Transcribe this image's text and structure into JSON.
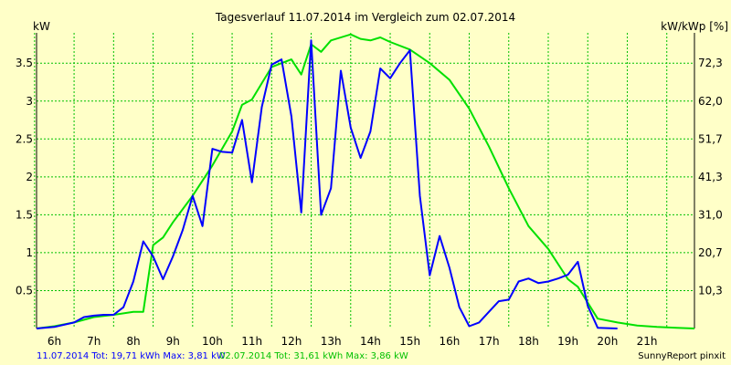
{
  "chart_data": {
    "type": "line",
    "title": "Tagesverlauf 11.07.2014 im Vergleich zum 02.07.2014",
    "ylabel_left": "kW",
    "ylabel_right": "kW/kWp [%]",
    "ylim": [
      0,
      3.9
    ],
    "xlim": [
      5.55,
      22.2
    ],
    "grid": true,
    "x_ticks": [
      "6h",
      "7h",
      "8h",
      "9h",
      "10h",
      "11h",
      "12h",
      "13h",
      "14h",
      "15h",
      "16h",
      "17h",
      "18h",
      "19h",
      "20h",
      "21h"
    ],
    "y_ticks_left": [
      "0.5",
      "1",
      "1.5",
      "2",
      "2.5",
      "3",
      "3.5"
    ],
    "y_ticks_right": [
      "10,3",
      "20,7",
      "31,0",
      "41,3",
      "51,7",
      "62,0",
      "72,3"
    ],
    "legend": {
      "series1": "11.07.2014 Tot: 19,71 kWh Max: 3,81 kW",
      "series2": "02.07.2014 Tot: 31,61 kWh Max: 3,86 kW"
    },
    "credit": "SunnyReport pinxit",
    "series": [
      {
        "color": "#0000ff",
        "points": [
          [
            5.55,
            0
          ],
          [
            6.0,
            0.02
          ],
          [
            6.5,
            0.08
          ],
          [
            6.75,
            0.15
          ],
          [
            7.0,
            0.17
          ],
          [
            7.25,
            0.18
          ],
          [
            7.5,
            0.18
          ],
          [
            7.75,
            0.28
          ],
          [
            8.0,
            0.62
          ],
          [
            8.25,
            1.15
          ],
          [
            8.5,
            0.95
          ],
          [
            8.75,
            0.65
          ],
          [
            9.0,
            0.95
          ],
          [
            9.25,
            1.3
          ],
          [
            9.5,
            1.75
          ],
          [
            9.75,
            1.35
          ],
          [
            10.0,
            2.37
          ],
          [
            10.25,
            2.33
          ],
          [
            10.5,
            2.32
          ],
          [
            10.75,
            2.75
          ],
          [
            11.0,
            1.93
          ],
          [
            11.25,
            2.92
          ],
          [
            11.5,
            3.48
          ],
          [
            11.75,
            3.55
          ],
          [
            12.0,
            2.8
          ],
          [
            12.25,
            1.53
          ],
          [
            12.5,
            3.8
          ],
          [
            12.75,
            1.5
          ],
          [
            13.0,
            1.85
          ],
          [
            13.25,
            3.4
          ],
          [
            13.5,
            2.65
          ],
          [
            13.75,
            2.25
          ],
          [
            14.0,
            2.6
          ],
          [
            14.25,
            3.43
          ],
          [
            14.5,
            3.3
          ],
          [
            14.75,
            3.5
          ],
          [
            15.0,
            3.67
          ],
          [
            15.25,
            1.75
          ],
          [
            15.5,
            0.7
          ],
          [
            15.75,
            1.22
          ],
          [
            16.0,
            0.8
          ],
          [
            16.25,
            0.28
          ],
          [
            16.5,
            0.03
          ],
          [
            16.75,
            0.08
          ],
          [
            17.0,
            0.22
          ],
          [
            17.25,
            0.36
          ],
          [
            17.5,
            0.38
          ],
          [
            17.75,
            0.62
          ],
          [
            18.0,
            0.66
          ],
          [
            18.25,
            0.6
          ],
          [
            18.5,
            0.62
          ],
          [
            18.75,
            0.66
          ],
          [
            19.0,
            0.71
          ],
          [
            19.25,
            0.88
          ],
          [
            19.5,
            0.3
          ],
          [
            19.75,
            0.01
          ],
          [
            20.25,
            0
          ]
        ]
      },
      {
        "color": "#00e000",
        "points": [
          [
            5.55,
            0
          ],
          [
            6.0,
            0.03
          ],
          [
            6.5,
            0.08
          ],
          [
            7.0,
            0.15
          ],
          [
            7.5,
            0.18
          ],
          [
            8.0,
            0.22
          ],
          [
            8.25,
            0.22
          ],
          [
            8.5,
            1.1
          ],
          [
            8.75,
            1.2
          ],
          [
            9.0,
            1.4
          ],
          [
            9.5,
            1.75
          ],
          [
            10.0,
            2.15
          ],
          [
            10.5,
            2.6
          ],
          [
            10.75,
            2.95
          ],
          [
            11.0,
            3.02
          ],
          [
            11.5,
            3.45
          ],
          [
            12.0,
            3.55
          ],
          [
            12.25,
            3.35
          ],
          [
            12.5,
            3.75
          ],
          [
            12.75,
            3.65
          ],
          [
            13.0,
            3.8
          ],
          [
            13.5,
            3.88
          ],
          [
            13.75,
            3.82
          ],
          [
            14.0,
            3.8
          ],
          [
            14.25,
            3.84
          ],
          [
            14.5,
            3.78
          ],
          [
            15.0,
            3.68
          ],
          [
            15.5,
            3.5
          ],
          [
            16.0,
            3.28
          ],
          [
            16.5,
            2.9
          ],
          [
            17.0,
            2.4
          ],
          [
            17.5,
            1.85
          ],
          [
            18.0,
            1.35
          ],
          [
            18.5,
            1.05
          ],
          [
            19.0,
            0.65
          ],
          [
            19.25,
            0.55
          ],
          [
            19.75,
            0.13
          ],
          [
            20.25,
            0.08
          ],
          [
            20.75,
            0.04
          ],
          [
            21.25,
            0.02
          ],
          [
            21.75,
            0.01
          ],
          [
            22.2,
            0
          ]
        ]
      }
    ]
  }
}
